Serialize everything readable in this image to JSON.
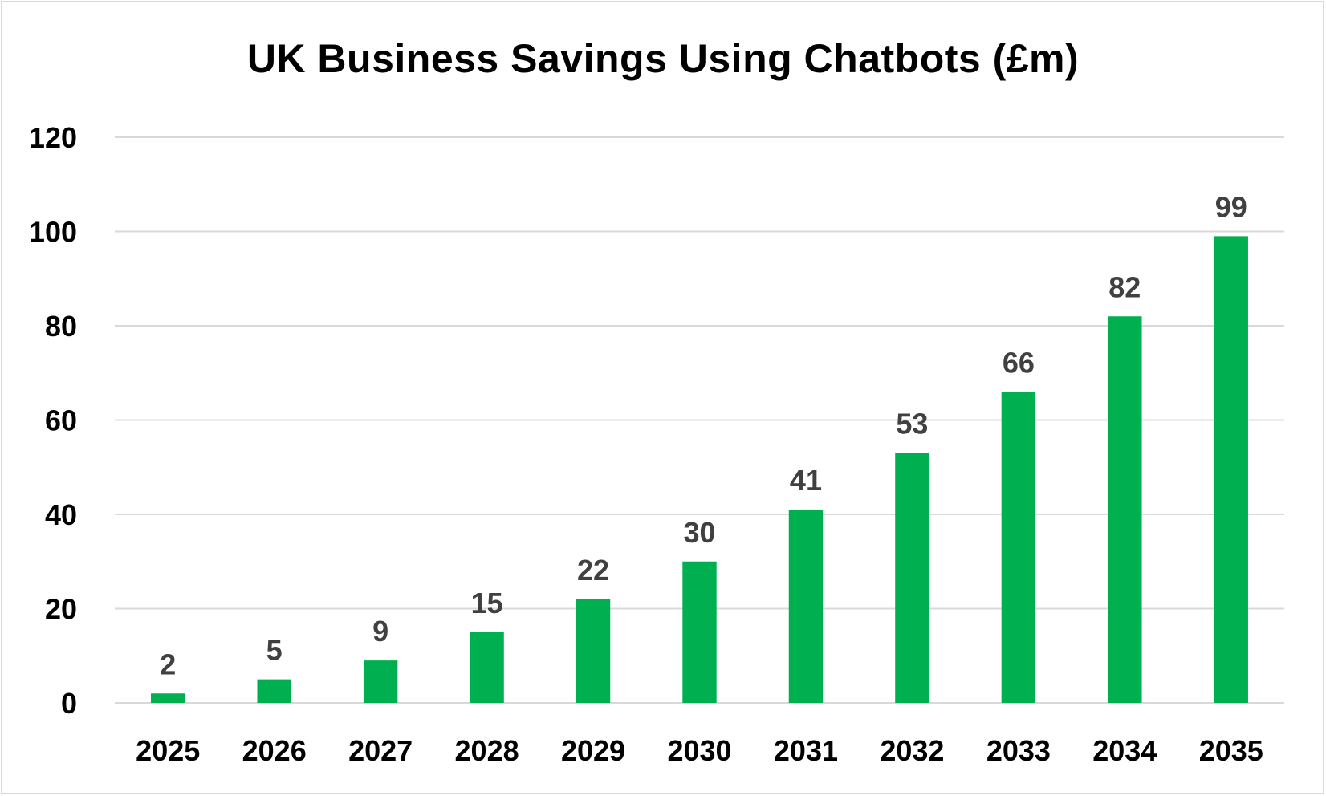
{
  "chart_data": {
    "type": "bar",
    "title": "UK Business Savings Using Chatbots (£m)",
    "categories": [
      "2025",
      "2026",
      "2027",
      "2028",
      "2029",
      "2030",
      "2031",
      "2032",
      "2033",
      "2034",
      "2035"
    ],
    "values": [
      2,
      5,
      9,
      15,
      22,
      30,
      41,
      53,
      66,
      82,
      99
    ],
    "data_labels": [
      "2",
      "5",
      "9",
      "15",
      "22",
      "30",
      "41",
      "53",
      "66",
      "82",
      "99"
    ],
    "xlabel": "",
    "ylabel": "",
    "ylim": [
      0,
      120
    ],
    "yticks": [
      0,
      20,
      40,
      60,
      80,
      100,
      120
    ],
    "ytick_labels": [
      "0",
      "20",
      "40",
      "60",
      "80",
      "100",
      "120"
    ],
    "grid": true,
    "legend": "none",
    "colors": {
      "bar": "#00b050",
      "grid": "#d9d9d9",
      "data_label": "#404040",
      "tick_label": "#000000"
    }
  }
}
